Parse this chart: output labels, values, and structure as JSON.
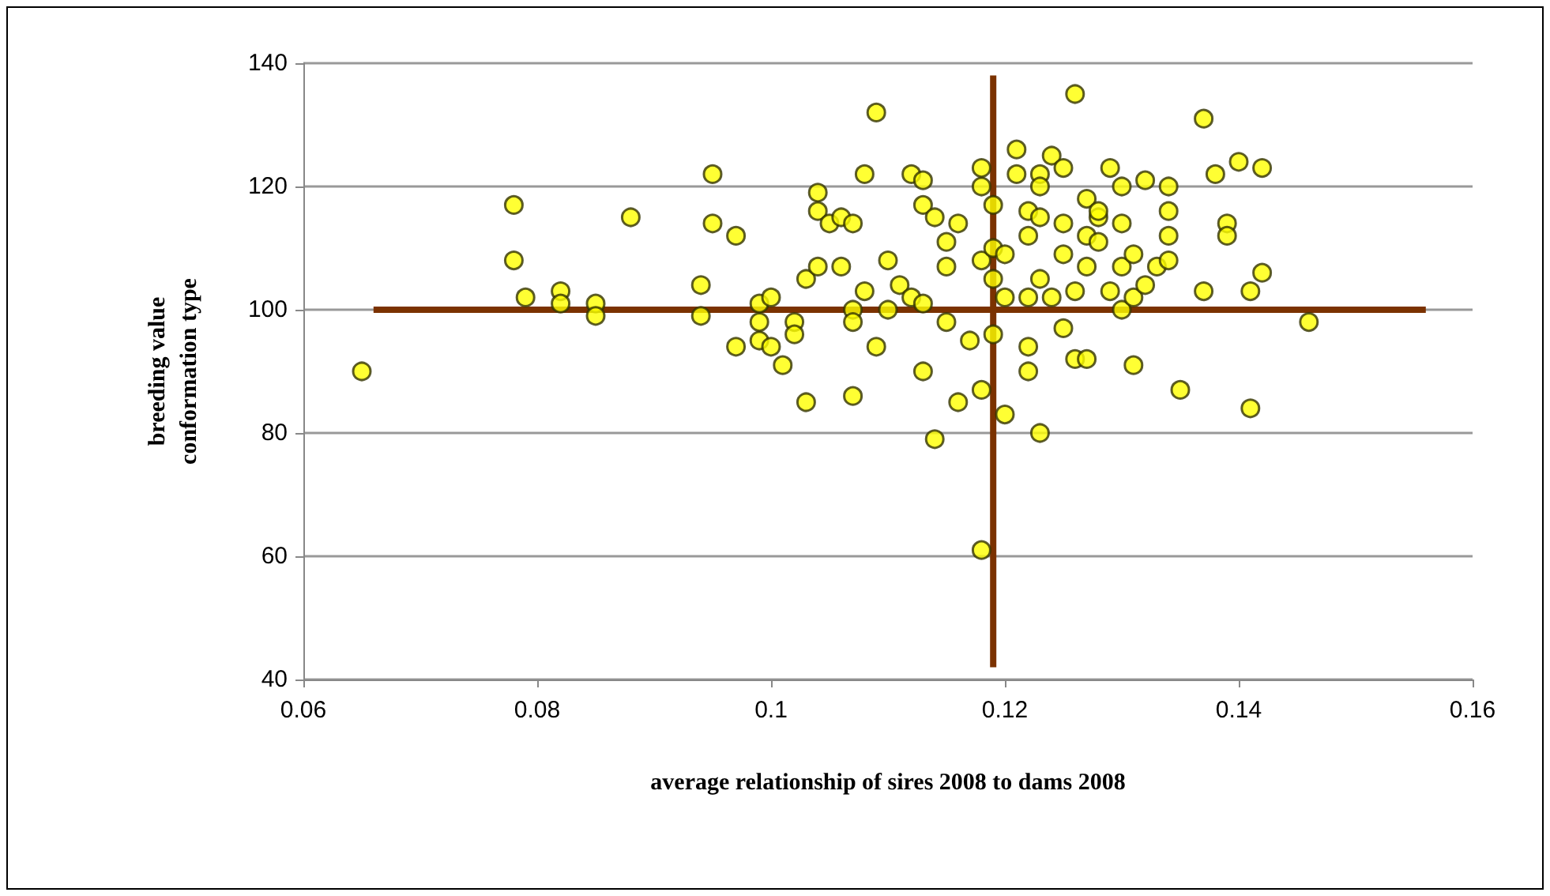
{
  "chart_data": {
    "type": "scatter",
    "xlabel": "average relationship of sires 2008 to dams 2008",
    "ylabel": "breeding value\nconformation type",
    "series": [
      {
        "color": "#ffff00",
        "marker": "circle",
        "x": [
          0.065,
          0.078,
          0.078,
          0.079,
          0.082,
          0.082,
          0.085,
          0.085,
          0.088,
          0.094,
          0.094,
          0.095,
          0.095,
          0.097,
          0.097,
          0.099,
          0.099,
          0.099,
          0.1,
          0.1,
          0.101,
          0.102,
          0.102,
          0.103,
          0.103,
          0.104,
          0.104,
          0.104,
          0.105,
          0.106,
          0.106,
          0.107,
          0.107,
          0.107,
          0.108,
          0.107,
          0.108,
          0.109,
          0.109,
          0.11,
          0.11,
          0.111,
          0.112,
          0.112,
          0.113,
          0.113,
          0.113,
          0.114,
          0.113,
          0.114,
          0.115,
          0.115,
          0.115,
          0.116,
          0.116,
          0.117,
          0.118,
          0.118,
          0.118,
          0.118,
          0.118,
          0.119,
          0.119,
          0.119,
          0.119,
          0.12,
          0.12,
          0.12,
          0.121,
          0.121,
          0.122,
          0.122,
          0.122,
          0.122,
          0.122,
          0.123,
          0.123,
          0.123,
          0.123,
          0.123,
          0.124,
          0.124,
          0.125,
          0.125,
          0.125,
          0.125,
          0.126,
          0.126,
          0.126,
          0.127,
          0.127,
          0.127,
          0.127,
          0.128,
          0.128,
          0.128,
          0.129,
          0.129,
          0.13,
          0.13,
          0.13,
          0.13,
          0.131,
          0.131,
          0.131,
          0.132,
          0.132,
          0.133,
          0.134,
          0.134,
          0.134,
          0.134,
          0.135,
          0.137,
          0.137,
          0.138,
          0.139,
          0.139,
          0.14,
          0.141,
          0.141,
          0.142,
          0.142,
          0.146
        ],
        "values": [
          90,
          117,
          108,
          102,
          103,
          101,
          101,
          99,
          115,
          104,
          99,
          122,
          114,
          112,
          94,
          95,
          98,
          101,
          102,
          94,
          91,
          98,
          96,
          85,
          105,
          107,
          119,
          116,
          114,
          115,
          107,
          86,
          114,
          100,
          103,
          98,
          122,
          94,
          132,
          108,
          100,
          104,
          102,
          122,
          101,
          117,
          90,
          79,
          121,
          115,
          111,
          107,
          98,
          85,
          114,
          95,
          120,
          108,
          61,
          87,
          123,
          117,
          110,
          105,
          96,
          83,
          102,
          109,
          126,
          122,
          94,
          116,
          102,
          90,
          112,
          105,
          122,
          80,
          115,
          120,
          102,
          125,
          109,
          114,
          97,
          123,
          103,
          92,
          135,
          118,
          112,
          92,
          107,
          115,
          116,
          111,
          123,
          103,
          100,
          107,
          114,
          120,
          109,
          102,
          91,
          104,
          121,
          107,
          120,
          112,
          116,
          108,
          87,
          131,
          103,
          122,
          114,
          112,
          124,
          103,
          84,
          106,
          123,
          98
        ]
      },
      {
        "type": "line",
        "marker": "none",
        "color": "#7b3200",
        "x": [
          0.119,
          0.119
        ],
        "values": [
          42,
          138
        ]
      },
      {
        "type": "line",
        "marker": "none",
        "color": "#7b3200",
        "x": [
          0.066,
          0.156
        ],
        "values": [
          100,
          100
        ]
      }
    ],
    "xlim": [
      0.06,
      0.16
    ],
    "xticks": [
      0.06,
      0.08,
      0.1,
      0.12,
      0.14,
      0.16
    ],
    "ylim": [
      40,
      140
    ],
    "yticks": [
      40,
      60,
      80,
      100,
      120,
      140
    ],
    "grid": "y",
    "line_style": "solid"
  }
}
